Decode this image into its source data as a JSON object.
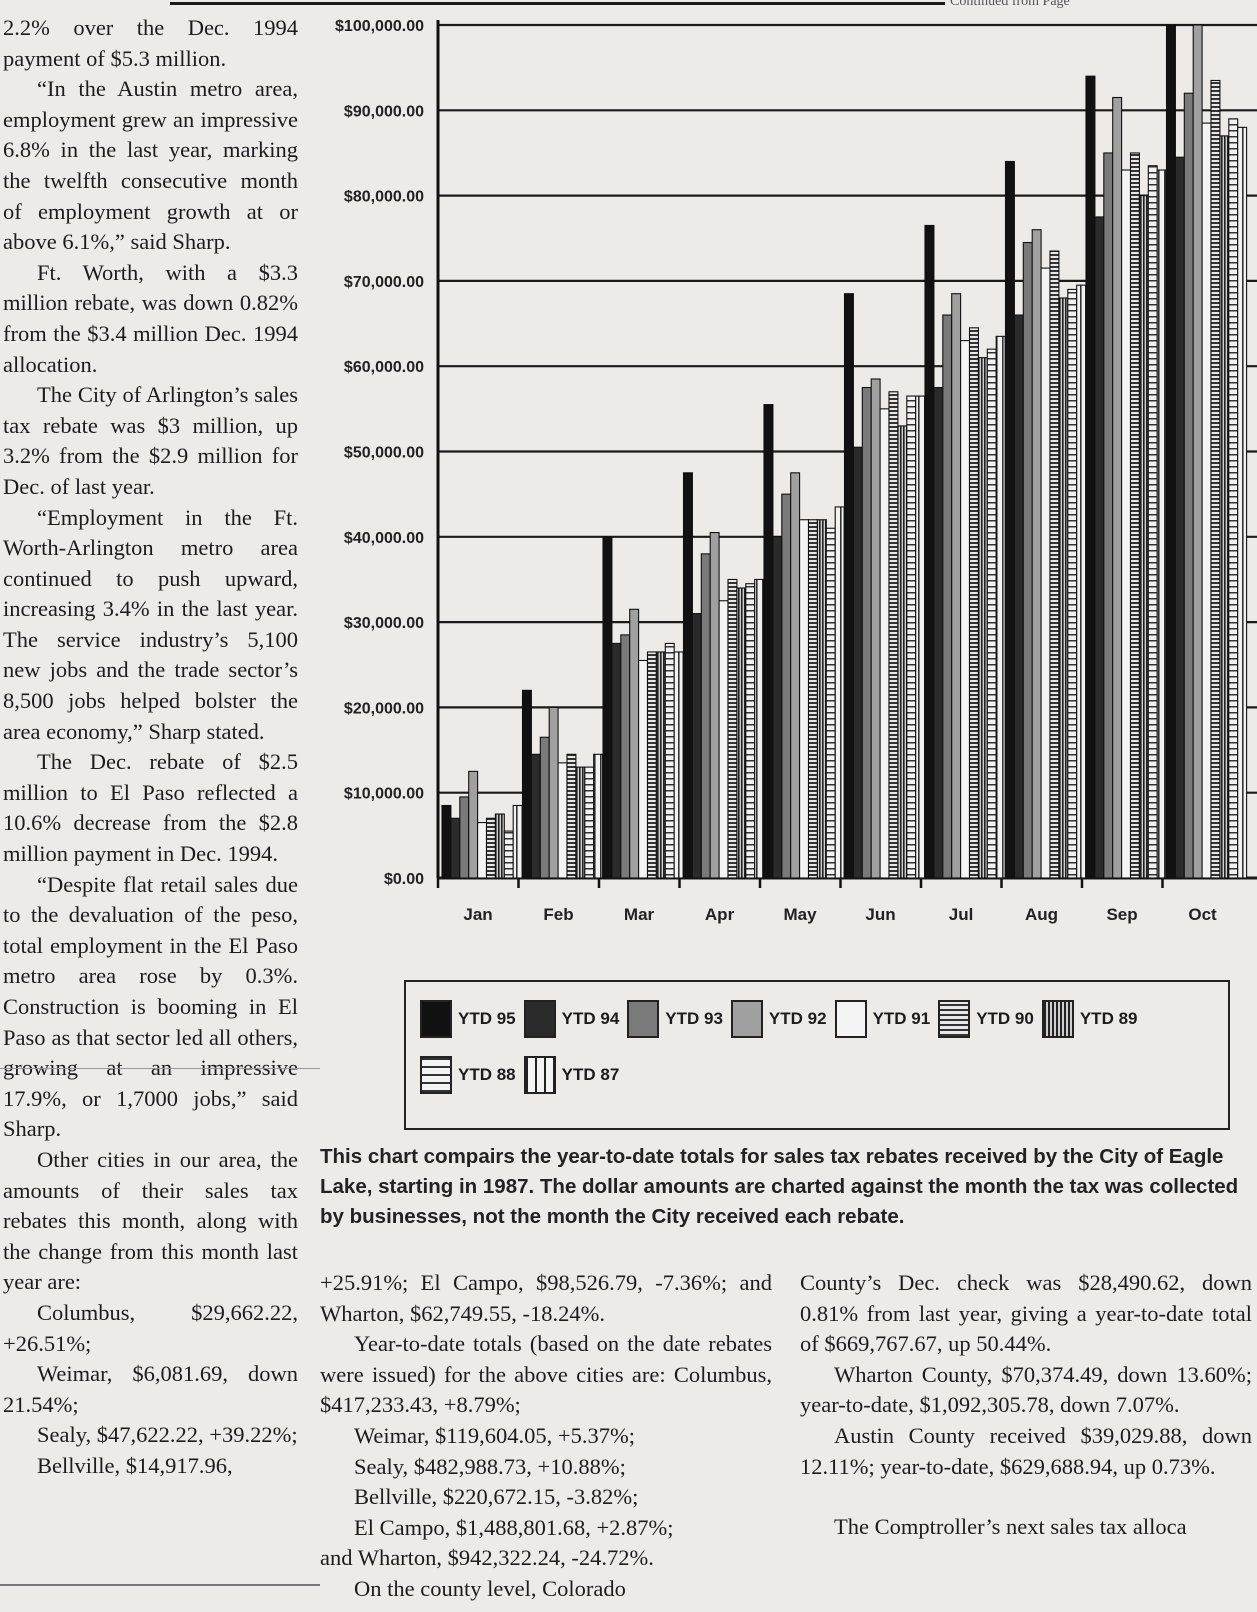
{
  "top_right_fragment": "Continued from Page",
  "col1": {
    "paras": [
      "2.2% over the Dec. 1994 payment of $5.3 million.",
      "“In the Austin metro area, employment grew an impressive 6.8% in the last year, marking the twelfth consecutive month of employment growth at or above 6.1%,” said Sharp.",
      "Ft. Worth, with a $3.3 million rebate, was down 0.82% from the $3.4 million Dec. 1994 allocation.",
      "The City of Arlington’s sales tax rebate was $3 million, up 3.2% from the $2.9 million for Dec. of last year.",
      "“Employment in the Ft. Worth-Arlington metro area continued to push upward, increasing 3.4% in the last year. The service industry’s 5,100 new jobs and the trade sector’s 8,500 jobs helped bolster the area economy,” Sharp stated.",
      "The Dec. rebate of $2.5 million to El Paso reflected a 10.6% decrease from the $2.8 million payment in Dec. 1994.",
      "“Despite flat retail sales due to the devaluation of the peso, total employment in the El Paso metro area rose by 0.3%. Construction is booming in El Paso as that sector led all others, growing at an impressive 17.9%, or 1,7000 jobs,” said Sharp.",
      "Other cities in our area, the amounts of their sales tax rebates this month, along with the change from this month last year are:"
    ],
    "list": [
      "Columbus, $29,662.22, +26.51%;",
      "Weimar, $6,081.69, down 21.54%;",
      "Sealy, $47,622.22, +39.22%;",
      "Bellville, $14,917.96,"
    ]
  },
  "col2": {
    "paras": [
      "+25.91%; El Campo, $98,526.79, -7.36%; and Wharton, $62,749.55, -18.24%.",
      "Year-to-date totals (based on the date rebates were issued) for the above cities are: Columbus, $417,233.43, +8.79%;"
    ],
    "list": [
      "Weimar, $119,604.05, +5.37%;",
      "Sealy, $482,988.73, +10.88%;",
      "Bellville, $220,672.15, -3.82%;",
      "El Campo, $1,488,801.68, +2.87%;"
    ],
    "tail": "and Wharton, $942,322.24, -24.72%.",
    "last": "On the county level, Colorado"
  },
  "col3": {
    "paras": [
      "County’s Dec. check was $28,490.62, down 0.81% from last year, giving a year-to-date total of $669,767.67, up 50.44%.",
      "Wharton County, $70,374.49, down 13.60%; year-to-date, $1,092,305.78, down 7.07%.",
      "Austin County received $39,029.88, down 12.11%; year-to-date, $629,688.94, up 0.73%."
    ],
    "last": "The Comptroller’s next sales tax alloca"
  },
  "caption": "This chart compairs the year-to-date totals for sales tax rebates received by the City of Eagle Lake, starting in 1987. The dollar amounts are charted against the month the tax was collected by businesses, not the month the City received each rebate.",
  "chart_data": {
    "type": "bar",
    "categories": [
      "Jan",
      "Feb",
      "Mar",
      "Apr",
      "May",
      "Jun",
      "Jul",
      "Aug",
      "Sep",
      "Oct"
    ],
    "yticks": [
      "$100,000.00",
      "$90,000.00",
      "$80,000.00",
      "$70,000.00",
      "$60,000.00",
      "$50,000.00",
      "$40,000.00",
      "$30,000.00",
      "$20,000.00",
      "$10,000.00",
      "$0.00"
    ],
    "ylim": [
      0,
      100000
    ],
    "grid": true,
    "legend_position": "bottom",
    "series": [
      {
        "name": "YTD 95",
        "fill": "#111111",
        "values": [
          8500,
          22000,
          40000,
          47500,
          55500,
          68500,
          76500,
          84000,
          94000,
          100000
        ]
      },
      {
        "name": "YTD 94",
        "fill": "#2b2b2b",
        "values": [
          7000,
          14500,
          27500,
          31000,
          40000,
          50500,
          57500,
          66000,
          77500,
          84500
        ]
      },
      {
        "name": "YTD 93",
        "fill": "#7a7a7a",
        "values": [
          9500,
          16500,
          28500,
          38000,
          45000,
          57500,
          66000,
          74500,
          85000,
          92000
        ]
      },
      {
        "name": "YTD 92",
        "fill": "#a0a0a0",
        "values": [
          12500,
          20000,
          31500,
          40500,
          47500,
          58500,
          68500,
          76000,
          91500,
          100000
        ]
      },
      {
        "name": "YTD 91",
        "fill": "#f4f4f4",
        "values": [
          6500,
          13500,
          25500,
          32500,
          42000,
          55000,
          63000,
          71500,
          83000,
          88500
        ]
      },
      {
        "name": "YTD 90",
        "fill": "hstripe",
        "values": [
          7000,
          14500,
          26500,
          35000,
          42000,
          57000,
          64500,
          73500,
          85000,
          93500
        ]
      },
      {
        "name": "YTD 89",
        "fill": "vstripe-dark",
        "values": [
          7500,
          13000,
          26500,
          34000,
          42000,
          53000,
          61000,
          68000,
          80000,
          87000
        ]
      },
      {
        "name": "YTD 88",
        "fill": "hstripe-light",
        "values": [
          5500,
          13000,
          27500,
          34500,
          41000,
          56500,
          62000,
          69000,
          83500,
          89000
        ]
      },
      {
        "name": "YTD 87",
        "fill": "vstripe-light",
        "values": [
          8500,
          14500,
          26500,
          35000,
          43500,
          56500,
          63500,
          69500,
          83000,
          88000
        ]
      }
    ]
  }
}
